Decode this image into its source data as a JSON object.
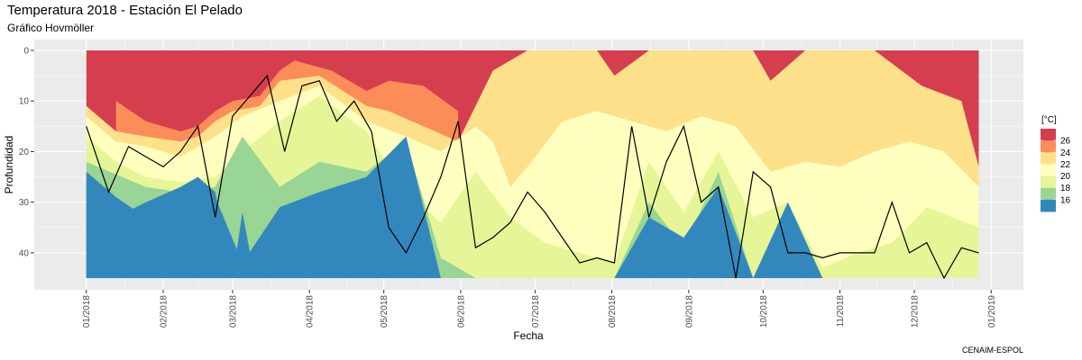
{
  "chart_data": {
    "type": "heatmap",
    "title": "Temperatura 2018 - Estación El Pelado",
    "subtitle": "Gráfico Hovmöller",
    "xlabel": "Fecha",
    "ylabel": "Profundidad",
    "caption": "CENAIM-ESPOL",
    "legend_title": "[°C]",
    "legend_position": "right",
    "grid": true,
    "y_reversed": true,
    "ylim": [
      0,
      45
    ],
    "y_ticks": [
      0,
      10,
      20,
      30,
      40
    ],
    "x_ticks": [
      "01/2018",
      "02/2018",
      "03/2018",
      "04/2018",
      "05/2018",
      "06/2018",
      "07/2018",
      "08/2018",
      "09/2018",
      "10/2018",
      "11/2018",
      "12/2018",
      "01/2019"
    ],
    "levels": [
      {
        "label": "26",
        "color": "#d53e4f"
      },
      {
        "label": "24",
        "color": "#fc8d59"
      },
      {
        "label": "22",
        "color": "#fee08b"
      },
      {
        "label": "20",
        "color": "#ffffbf"
      },
      {
        "label": "18",
        "color": "#e6f598"
      },
      {
        "label": "16",
        "color": "#99d594"
      },
      {
        "label": "",
        "color": "#3288bd"
      }
    ],
    "series": [
      {
        "level": "above 26",
        "color": "#d53e4f",
        "x": [
          "2018-01-13",
          "2018-01-25",
          "2018-02-08",
          "2018-02-15",
          "2018-02-22",
          "2018-03-01",
          "2018-03-12",
          "2018-03-20",
          "2018-03-26",
          "2018-04-10",
          "2018-04-24",
          "2018-05-03",
          "2018-05-17",
          "2018-05-31"
        ],
        "y": [
          10,
          14,
          16,
          15,
          12,
          10,
          9,
          4,
          2,
          4,
          8,
          6,
          7,
          12
        ]
      },
      {
        "level": "24-26",
        "color": "#fc8d59",
        "x": [
          "2018-01-01",
          "2018-01-13",
          "2018-01-25",
          "2018-02-08",
          "2018-02-15",
          "2018-02-22",
          "2018-03-01",
          "2018-03-12",
          "2018-03-20",
          "2018-04-05",
          "2018-04-24",
          "2018-05-03",
          "2018-05-17",
          "2018-05-31",
          "2018-06-14",
          "2018-06-28",
          "2018-07-12",
          "2018-07-26",
          "2018-08-02",
          "2018-08-16",
          "2018-08-30",
          "2018-09-13",
          "2018-09-27",
          "2018-10-04",
          "2018-10-18",
          "2018-11-01",
          "2018-11-15",
          "2018-12-04",
          "2018-12-20",
          "2018-12-27"
        ],
        "y": [
          11,
          16,
          17,
          18,
          17,
          14,
          12,
          11,
          6,
          5,
          11,
          12,
          15,
          18,
          4,
          0,
          0,
          0,
          5,
          0,
          0,
          0,
          0,
          6,
          0,
          0,
          0,
          7,
          10,
          23
        ]
      },
      {
        "level": "22-24",
        "color": "#fee08b",
        "x": [
          "2018-01-01",
          "2018-01-13",
          "2018-01-25",
          "2018-02-08",
          "2018-02-22",
          "2018-03-05",
          "2018-03-20",
          "2018-04-05",
          "2018-04-24",
          "2018-05-10",
          "2018-05-24",
          "2018-06-07",
          "2018-06-14",
          "2018-06-21",
          "2018-06-28",
          "2018-07-12",
          "2018-07-26",
          "2018-08-09",
          "2018-08-23",
          "2018-09-06",
          "2018-09-20",
          "2018-10-04",
          "2018-10-18",
          "2018-11-01",
          "2018-11-15",
          "2018-11-29",
          "2018-12-13",
          "2018-12-27"
        ],
        "y": [
          13,
          18,
          19,
          21,
          17,
          13,
          10,
          7,
          14,
          17,
          20,
          15,
          18,
          27,
          23,
          14,
          12,
          14,
          16,
          13,
          15,
          24,
          22,
          23,
          20,
          18,
          20,
          27
        ]
      },
      {
        "level": "20-22",
        "color": "#ffffbf",
        "x": [
          "2018-01-01",
          "2018-01-13",
          "2018-01-25",
          "2018-02-08",
          "2018-02-22",
          "2018-03-05",
          "2018-03-20",
          "2018-04-05",
          "2018-04-24",
          "2018-05-10",
          "2018-05-24",
          "2018-06-07",
          "2018-06-21",
          "2018-07-05",
          "2018-07-19",
          "2018-08-02",
          "2018-08-16",
          "2018-08-30",
          "2018-09-13",
          "2018-09-27",
          "2018-10-11",
          "2018-10-25",
          "2018-11-08",
          "2018-11-22",
          "2018-12-06",
          "2018-12-27"
        ],
        "y": [
          17,
          22,
          25,
          26,
          25,
          20,
          14,
          9,
          16,
          28,
          34,
          24,
          33,
          38,
          40,
          42,
          22,
          32,
          20,
          33,
          30,
          43,
          40,
          38,
          31,
          35
        ]
      },
      {
        "level": "18-20",
        "color": "#e6f598",
        "x": [
          "2018-01-01",
          "2018-01-25",
          "2018-02-08",
          "2018-02-22",
          "2018-03-05",
          "2018-03-20",
          "2018-04-05",
          "2018-04-24",
          "2018-05-10",
          "2018-05-24",
          "2018-06-07",
          "2018-06-21",
          "2018-07-05",
          "2018-07-19",
          "2018-08-02",
          "2018-08-16",
          "2018-08-30",
          "2018-09-13",
          "2018-09-27",
          "2018-10-11",
          "2018-10-25",
          "2018-11-08",
          "2018-11-22",
          "2018-12-06",
          "2018-12-27"
        ],
        "y": [
          22,
          27,
          28,
          27,
          17,
          27,
          22,
          24,
          18,
          41,
          45,
          45,
          45,
          45,
          45,
          30,
          39,
          24,
          45,
          45,
          45,
          45,
          45,
          45,
          45
        ]
      },
      {
        "level": "16-18",
        "color": "#99d594",
        "x": [
          "2018-01-01",
          "2018-01-13",
          "2018-01-25",
          "2018-02-08",
          "2018-02-22",
          "2018-03-05",
          "2018-03-20",
          "2018-04-05",
          "2018-04-24",
          "2018-05-10",
          "2018-05-24",
          "2018-06-07",
          "2018-08-02",
          "2018-08-16",
          "2018-08-30",
          "2018-09-13",
          "2018-09-27",
          "2018-10-11",
          "2018-10-25"
        ],
        "y": [
          24,
          29,
          33,
          30,
          29,
          42,
          31,
          28,
          25,
          17,
          45,
          45,
          45,
          33,
          37,
          27,
          45,
          30,
          45
        ]
      },
      {
        "level": "below 16",
        "color": "#3288bd",
        "x": [
          "2018-01-01",
          "2018-01-13",
          "2018-01-25",
          "2018-02-08",
          "2018-02-15",
          "2018-02-22",
          "2018-03-01",
          "2018-03-05",
          "2018-03-08",
          "2018-03-15"
        ],
        "y": [
          26,
          33,
          30,
          27,
          25,
          28,
          45,
          32,
          40,
          45
        ]
      }
    ],
    "contour_20": {
      "x": [
        "2018-01-01",
        "2018-01-10",
        "2018-01-18",
        "2018-01-25",
        "2018-02-01",
        "2018-02-08",
        "2018-02-15",
        "2018-02-22",
        "2018-03-01",
        "2018-03-08",
        "2018-03-15",
        "2018-03-22",
        "2018-03-29",
        "2018-04-05",
        "2018-04-12",
        "2018-04-19",
        "2018-04-26",
        "2018-05-03",
        "2018-05-10",
        "2018-05-17",
        "2018-05-24",
        "2018-05-31",
        "2018-06-07",
        "2018-06-14",
        "2018-06-21",
        "2018-06-28",
        "2018-07-05",
        "2018-07-12",
        "2018-07-19",
        "2018-07-26",
        "2018-08-02",
        "2018-08-09",
        "2018-08-16",
        "2018-08-23",
        "2018-08-30",
        "2018-09-06",
        "2018-09-13",
        "2018-09-20",
        "2018-09-27",
        "2018-10-04",
        "2018-10-11",
        "2018-10-18",
        "2018-10-25",
        "2018-11-01",
        "2018-11-08",
        "2018-11-15",
        "2018-11-22",
        "2018-11-29",
        "2018-12-06",
        "2018-12-13",
        "2018-12-20",
        "2018-12-27"
      ],
      "y": [
        15,
        28,
        19,
        21,
        23,
        20,
        15,
        33,
        13,
        9,
        5,
        20,
        7,
        6,
        14,
        10,
        16,
        35,
        40,
        33,
        25,
        14,
        39,
        37,
        34,
        28,
        32,
        37,
        42,
        41,
        42,
        15,
        33,
        22,
        15,
        30,
        27,
        45,
        24,
        27,
        40,
        40,
        41,
        40,
        40,
        40,
        30,
        40,
        38,
        45,
        39,
        40
      ]
    }
  }
}
